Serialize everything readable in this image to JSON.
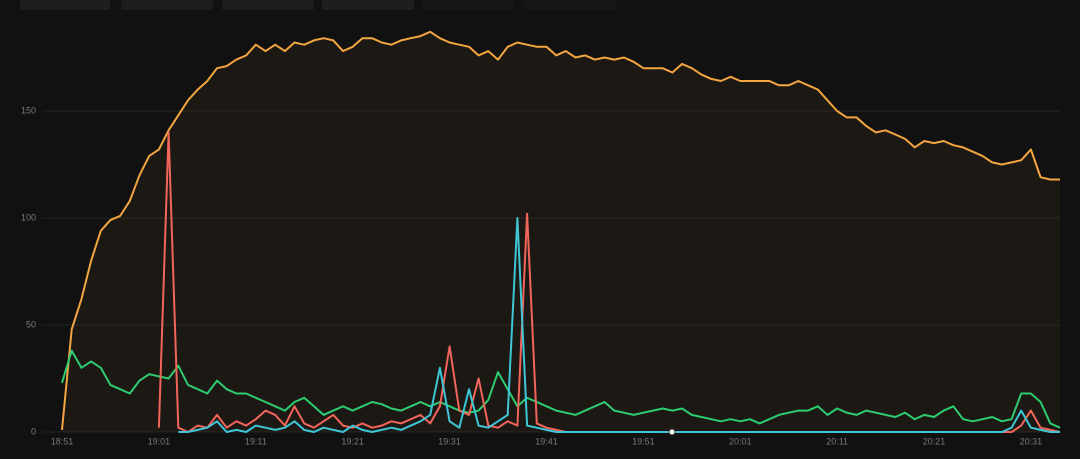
{
  "chart_data": {
    "type": "line",
    "x": [
      "18:51",
      "18:52",
      "18:53",
      "18:54",
      "18:55",
      "18:56",
      "18:57",
      "18:58",
      "18:59",
      "19:00",
      "19:01",
      "19:02",
      "19:03",
      "19:04",
      "19:05",
      "19:06",
      "19:07",
      "19:08",
      "19:09",
      "19:10",
      "19:11",
      "19:12",
      "19:13",
      "19:14",
      "19:15",
      "19:16",
      "19:17",
      "19:18",
      "19:19",
      "19:20",
      "19:21",
      "19:22",
      "19:23",
      "19:24",
      "19:25",
      "19:26",
      "19:27",
      "19:28",
      "19:29",
      "19:30",
      "19:31",
      "19:32",
      "19:33",
      "19:34",
      "19:35",
      "19:36",
      "19:37",
      "19:38",
      "19:39",
      "19:40",
      "19:41",
      "19:42",
      "19:43",
      "19:44",
      "19:45",
      "19:46",
      "19:47",
      "19:48",
      "19:49",
      "19:50",
      "19:51",
      "19:52",
      "19:53",
      "19:54",
      "19:55",
      "19:56",
      "19:57",
      "19:58",
      "19:59",
      "20:00",
      "20:01",
      "20:02",
      "20:03",
      "20:04",
      "20:05",
      "20:06",
      "20:07",
      "20:08",
      "20:09",
      "20:10",
      "20:11",
      "20:12",
      "20:13",
      "20:14",
      "20:15",
      "20:16",
      "20:17",
      "20:18",
      "20:19",
      "20:20",
      "20:21",
      "20:22",
      "20:23",
      "20:24",
      "20:25",
      "20:26",
      "20:27",
      "20:28",
      "20:29",
      "20:30",
      "20:31",
      "20:32",
      "20:33",
      "20:34"
    ],
    "series": [
      {
        "color": "#f2a541",
        "fill": true,
        "values": [
          1,
          48,
          62,
          80,
          94,
          99,
          101,
          108,
          120,
          129,
          132,
          141,
          148,
          155,
          160,
          164,
          170,
          171,
          174,
          176,
          181,
          178,
          181,
          178,
          182,
          181,
          183,
          184,
          183,
          178,
          180,
          184,
          184,
          182,
          181,
          183,
          184,
          185,
          187,
          184,
          182,
          181,
          180,
          176,
          178,
          174,
          180,
          182,
          181,
          180,
          180,
          176,
          178,
          175,
          176,
          174,
          175,
          174,
          175,
          173,
          170,
          170,
          170,
          168,
          172,
          170,
          167,
          165,
          164,
          166,
          164,
          164,
          164,
          164,
          162,
          162,
          164,
          162,
          160,
          155,
          150,
          147,
          147,
          143,
          140,
          141,
          139,
          137,
          133,
          136,
          135,
          136,
          134,
          133,
          131,
          129,
          126,
          125,
          126,
          127,
          132,
          119,
          118,
          118
        ]
      },
      {
        "color": "#2ecc71",
        "values": [
          23,
          38,
          30,
          33,
          30,
          22,
          20,
          18,
          24,
          27,
          26,
          25,
          31,
          22,
          20,
          18,
          24,
          20,
          18,
          18,
          16,
          14,
          12,
          10,
          14,
          16,
          12,
          8,
          10,
          12,
          10,
          12,
          14,
          13,
          11,
          10,
          12,
          14,
          12,
          14,
          12,
          10,
          9,
          10,
          15,
          28,
          20,
          12,
          16,
          14,
          12,
          10,
          9,
          8,
          10,
          12,
          14,
          10,
          9,
          8,
          9,
          10,
          11,
          10,
          11,
          8,
          7,
          6,
          5,
          6,
          5,
          6,
          4,
          6,
          8,
          9,
          10,
          10,
          12,
          8,
          11,
          9,
          8,
          10,
          9,
          8,
          7,
          9,
          6,
          8,
          7,
          10,
          12,
          6,
          5,
          6,
          7,
          5,
          6,
          18,
          18,
          14,
          4,
          2
        ]
      },
      {
        "color": "#f2655b",
        "values": [
          null,
          null,
          null,
          null,
          null,
          null,
          null,
          null,
          null,
          null,
          2,
          140,
          2,
          0,
          3,
          2,
          8,
          2,
          5,
          3,
          6,
          10,
          8,
          3,
          12,
          4,
          2,
          5,
          8,
          3,
          2,
          4,
          2,
          3,
          5,
          4,
          6,
          8,
          4,
          12,
          40,
          10,
          8,
          25,
          3,
          2,
          5,
          3,
          102,
          4,
          2,
          1,
          0,
          0,
          0,
          0,
          0,
          0,
          0,
          0,
          0,
          0,
          0,
          0,
          0,
          0,
          0,
          0,
          0,
          0,
          0,
          0,
          0,
          0,
          0,
          0,
          0,
          0,
          0,
          0,
          0,
          0,
          0,
          0,
          0,
          0,
          0,
          0,
          0,
          0,
          0,
          0,
          0,
          0,
          0,
          0,
          0,
          0,
          0,
          3,
          10,
          2,
          1,
          0
        ]
      },
      {
        "color": "#3fc6d6",
        "values": [
          null,
          null,
          null,
          null,
          null,
          null,
          null,
          null,
          null,
          null,
          null,
          null,
          0,
          0,
          1,
          2,
          5,
          0,
          1,
          0,
          3,
          2,
          1,
          2,
          5,
          1,
          0,
          2,
          1,
          0,
          3,
          1,
          0,
          1,
          2,
          1,
          3,
          5,
          8,
          30,
          5,
          2,
          20,
          3,
          2,
          5,
          8,
          100,
          3,
          2,
          1,
          0,
          0,
          0,
          0,
          0,
          0,
          0,
          0,
          0,
          0,
          0,
          0,
          0,
          0,
          0,
          0,
          0,
          0,
          0,
          0,
          0,
          0,
          0,
          0,
          0,
          0,
          0,
          0,
          0,
          0,
          0,
          0,
          0,
          0,
          0,
          0,
          0,
          0,
          0,
          0,
          0,
          0,
          0,
          0,
          0,
          0,
          0,
          2,
          10,
          2,
          1,
          0,
          0
        ]
      }
    ],
    "xlim": [
      "18:51",
      "20:34"
    ],
    "xticks": [
      "18:51",
      "19:01",
      "19:11",
      "19:21",
      "19:31",
      "19:41",
      "19:51",
      "20:01",
      "20:11",
      "20:21",
      "20:31"
    ],
    "ylim": [
      0,
      200
    ],
    "yticks": [
      0,
      50,
      100,
      150
    ],
    "grid": true
  }
}
